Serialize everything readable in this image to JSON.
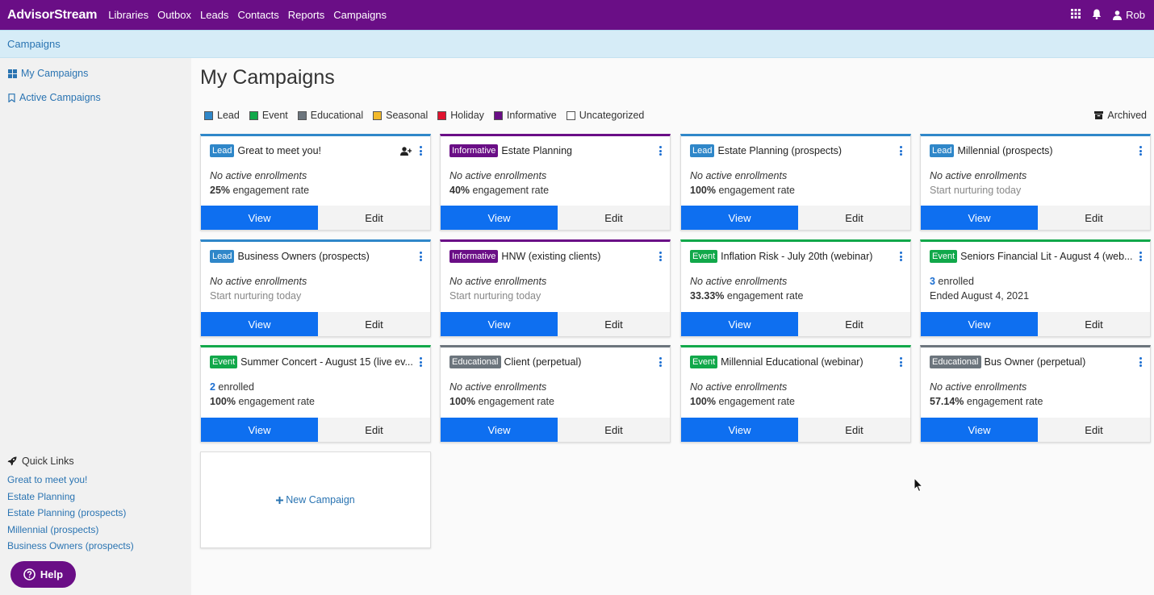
{
  "brand": {
    "bold": "AdvisorStream",
    "colors": {
      "primary": "#6a0e86",
      "accent": "#0e6ff0",
      "link": "#2a74b2"
    }
  },
  "nav": [
    "Libraries",
    "Outbox",
    "Leads",
    "Contacts",
    "Reports",
    "Campaigns"
  ],
  "header_icons": {
    "apps": "grid-icon",
    "bell": "bell-icon",
    "user": "user-icon"
  },
  "user_name": "Rob",
  "breadcrumb": "Campaigns",
  "sidebar": {
    "my_campaigns": "My Campaigns",
    "active_campaigns": "Active Campaigns",
    "quick_links_title": "Quick Links",
    "quick_links": [
      "Great to meet you!",
      "Estate Planning",
      "Estate Planning (prospects)",
      "Millennial (prospects)",
      "Business Owners (prospects)"
    ],
    "help": "Help"
  },
  "page_title": "My Campaigns",
  "legend": [
    {
      "label": "Lead",
      "color": "#2f87c9"
    },
    {
      "label": "Event",
      "color": "#11a84a"
    },
    {
      "label": "Educational",
      "color": "#6c757d"
    },
    {
      "label": "Seasonal",
      "color": "#f2b92a"
    },
    {
      "label": "Holiday",
      "color": "#e0132f"
    },
    {
      "label": "Informative",
      "color": "#6a0e86"
    },
    {
      "label": "Uncategorized",
      "color": "#ffffff"
    }
  ],
  "archived": "Archived",
  "buttons": {
    "view": "View",
    "edit": "Edit"
  },
  "new_campaign": "New Campaign",
  "cards": [
    {
      "badge": "Lead",
      "color": "#2f87c9",
      "title": "Great to meet you!",
      "line1": "No active enrollments",
      "line2_bold": "25%",
      "line2_rest": " engagement rate",
      "extra_icon": true
    },
    {
      "badge": "Informative",
      "color": "#6a0e86",
      "title": "Estate Planning",
      "line1": "No active enrollments",
      "line2_bold": "40%",
      "line2_rest": " engagement rate"
    },
    {
      "badge": "Lead",
      "color": "#2f87c9",
      "title": "Estate Planning (prospects)",
      "line1": "No active enrollments",
      "line2_bold": "100%",
      "line2_rest": " engagement rate"
    },
    {
      "badge": "Lead",
      "color": "#2f87c9",
      "title": "Millennial (prospects)",
      "line1": "No active enrollments",
      "line2_bold": "",
      "line2_rest": "Start nurturing today",
      "muted": true
    },
    {
      "badge": "Lead",
      "color": "#2f87c9",
      "title": "Business Owners (prospects)",
      "line1": "No active enrollments",
      "line2_bold": "",
      "line2_rest": "Start nurturing today",
      "muted": true
    },
    {
      "badge": "Informative",
      "color": "#6a0e86",
      "title": "HNW (existing clients)",
      "line1": "No active enrollments",
      "line2_bold": "",
      "line2_rest": "Start nurturing today",
      "muted": true
    },
    {
      "badge": "Event",
      "color": "#11a84a",
      "title": "Inflation Risk - July 20th (webinar)",
      "line1": "No active enrollments",
      "line2_bold": "33.33%",
      "line2_rest": " engagement rate"
    },
    {
      "badge": "Event",
      "color": "#11a84a",
      "title": "Seniors Financial Lit - August 4 (web...",
      "line1_num": "3",
      "line1": " enrolled",
      "line2_bold": "",
      "line2_rest": "Ended August 4, 2021"
    },
    {
      "badge": "Event",
      "color": "#11a84a",
      "title": "Summer Concert - August 15 (live ev...",
      "line1_num": "2",
      "line1": " enrolled",
      "line2_bold": "100%",
      "line2_rest": " engagement rate"
    },
    {
      "badge": "Educational",
      "color": "#6c757d",
      "title": "Client (perpetual)",
      "line1": "No active enrollments",
      "line2_bold": "100%",
      "line2_rest": " engagement rate"
    },
    {
      "badge": "Event",
      "color": "#11a84a",
      "title": "Millennial Educational (webinar)",
      "line1": "No active enrollments",
      "line2_bold": "100%",
      "line2_rest": " engagement rate"
    },
    {
      "badge": "Educational",
      "color": "#6c757d",
      "title": "Bus Owner (perpetual)",
      "line1": "No active enrollments",
      "line2_bold": "57.14%",
      "line2_rest": " engagement rate"
    }
  ]
}
